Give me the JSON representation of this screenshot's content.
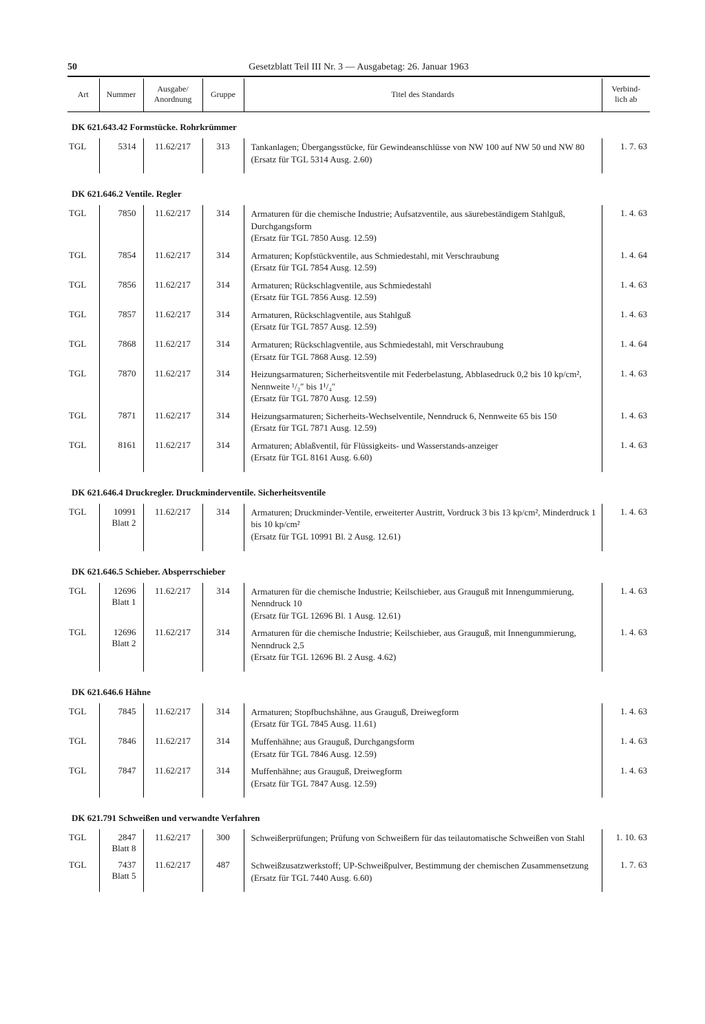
{
  "page_number": "50",
  "header": "Gesetzblatt Teil III Nr. 3 — Ausgabetag: 26. Januar 1963",
  "columns": {
    "art": "Art",
    "nummer": "Nummer",
    "ausgabe": "Ausgabe/\nAnordnung",
    "gruppe": "Gruppe",
    "titel": "Titel des Standards",
    "verbindlich": "Verbind-\nlich ab"
  },
  "sections": [
    {
      "heading": "DK 621.643.42 Formstücke. Rohrkrümmer",
      "rows": [
        {
          "art": "TGL",
          "num": "5314",
          "ausg": "11.62/217",
          "grp": "313",
          "titel": "Tankanlagen; Übergangsstücke, für Gewindeanschlüsse von NW 100 auf NW 50 und NW 80\n(Ersatz für TGL 5314 Ausg. 2.60)",
          "date": "1. 7. 63"
        }
      ]
    },
    {
      "heading": "DK 621.646.2 Ventile. Regler",
      "rows": [
        {
          "art": "TGL",
          "num": "7850",
          "ausg": "11.62/217",
          "grp": "314",
          "titel": "Armaturen für die chemische Industrie; Aufsatzventile, aus säurebeständigem Stahlguß, Durchgangsform\n(Ersatz für TGL 7850 Ausg. 12.59)",
          "date": "1. 4. 63"
        },
        {
          "art": "TGL",
          "num": "7854",
          "ausg": "11.62/217",
          "grp": "314",
          "titel": "Armaturen; Kopfstückventile, aus Schmiedestahl, mit Verschraubung\n(Ersatz für TGL 7854 Ausg. 12.59)",
          "date": "1. 4. 64"
        },
        {
          "art": "TGL",
          "num": "7856",
          "ausg": "11.62/217",
          "grp": "314",
          "titel": "Armaturen; Rückschlagventile, aus Schmiedestahl\n(Ersatz für TGL 7856 Ausg. 12.59)",
          "date": "1. 4. 63"
        },
        {
          "art": "TGL",
          "num": "7857",
          "ausg": "11.62/217",
          "grp": "314",
          "titel": "Armaturen, Rückschlagventile, aus Stahlguß\n(Ersatz für TGL 7857 Ausg. 12.59)",
          "date": "1. 4. 63"
        },
        {
          "art": "TGL",
          "num": "7868",
          "ausg": "11.62/217",
          "grp": "314",
          "titel": "Armaturen; Rückschlagventile, aus Schmiedestahl, mit Verschraubung\n(Ersatz für TGL 7868 Ausg. 12.59)",
          "date": "1. 4. 64"
        },
        {
          "art": "TGL",
          "num": "7870",
          "ausg": "11.62/217",
          "grp": "314",
          "titel": "Heizungsarmaturen; Sicherheitsventile mit Federbelastung, Abblasedruck 0,2 bis 10 kp/cm², Nennweite ¹/₂″ bis 1¹/₄″\n(Ersatz für TGL 7870 Ausg. 12.59)",
          "date": "1. 4. 63"
        },
        {
          "art": "TGL",
          "num": "7871",
          "ausg": "11.62/217",
          "grp": "314",
          "titel": "Heizungsarmaturen; Sicherheits-Wechselventile, Nenndruck 6, Nennweite 65 bis 150\n(Ersatz für TGL 7871 Ausg. 12.59)",
          "date": "1. 4. 63"
        },
        {
          "art": "TGL",
          "num": "8161",
          "ausg": "11.62/217",
          "grp": "314",
          "titel": "Armaturen; Ablaßventil, für Flüssigkeits- und Wasserstands-anzeiger\n(Ersatz für TGL 8161 Ausg. 6.60)",
          "date": "1. 4. 63"
        }
      ]
    },
    {
      "heading": "DK 621.646.4 Druckregler. Druckminderventile. Sicherheitsventile",
      "rows": [
        {
          "art": "TGL",
          "num": "10991\nBlatt 2",
          "ausg": "11.62/217",
          "grp": "314",
          "titel": "Armaturen; Druckminder-Ventile, erweiterter Austritt, Vordruck 3 bis 13 kp/cm², Minderdruck 1 bis 10 kp/cm²\n(Ersatz für TGL 10991 Bl. 2 Ausg. 12.61)",
          "date": "1. 4. 63"
        }
      ]
    },
    {
      "heading": "DK 621.646.5 Schieber. Absperrschieber",
      "rows": [
        {
          "art": "TGL",
          "num": "12696\nBlatt 1",
          "ausg": "11.62/217",
          "grp": "314",
          "titel": "Armaturen für die chemische Industrie; Keilschieber, aus Grauguß mit Innengummierung, Nenndruck 10\n(Ersatz für TGL 12696 Bl. 1 Ausg. 12.61)",
          "date": "1. 4. 63"
        },
        {
          "art": "TGL",
          "num": "12696\nBlatt 2",
          "ausg": "11.62/217",
          "grp": "314",
          "titel": "Armaturen für die chemische Industrie; Keilschieber, aus Grauguß, mit Innengummierung, Nenndruck 2,5\n(Ersatz für TGL 12696 Bl. 2 Ausg. 4.62)",
          "date": "1. 4. 63"
        }
      ]
    },
    {
      "heading": "DK 621.646.6 Hähne",
      "rows": [
        {
          "art": "TGL",
          "num": "7845",
          "ausg": "11.62/217",
          "grp": "314",
          "titel": "Armaturen; Stopfbuchshähne, aus Grauguß, Dreiwegform\n(Ersatz für TGL 7845 Ausg. 11.61)",
          "date": "1. 4. 63"
        },
        {
          "art": "TGL",
          "num": "7846",
          "ausg": "11.62/217",
          "grp": "314",
          "titel": "Muffenhähne; aus Grauguß, Durchgangsform\n(Ersatz für TGL 7846 Ausg. 12.59)",
          "date": "1. 4. 63"
        },
        {
          "art": "TGL",
          "num": "7847",
          "ausg": "11.62/217",
          "grp": "314",
          "titel": "Muffenhähne; aus Grauguß, Dreiwegform\n(Ersatz für TGL 7847 Ausg. 12.59)",
          "date": "1. 4. 63"
        }
      ]
    },
    {
      "heading": "DK 621.791 Schweißen und verwandte Verfahren",
      "rows": [
        {
          "art": "TGL",
          "num": "2847\nBlatt 8",
          "ausg": "11.62/217",
          "grp": "300",
          "titel": "Schweißerprüfungen; Prüfung von Schweißern für das teilautomatische Schweißen von Stahl",
          "date": "1. 10. 63"
        },
        {
          "art": "TGL",
          "num": "7437\nBlatt 5",
          "ausg": "11.62/217",
          "grp": "487",
          "titel": "Schweißzusatzwerkstoff; UP-Schweißpulver, Bestimmung der chemischen Zusammensetzung\n(Ersatz für TGL 7440 Ausg. 6.60)",
          "date": "1. 7. 63"
        }
      ]
    }
  ]
}
